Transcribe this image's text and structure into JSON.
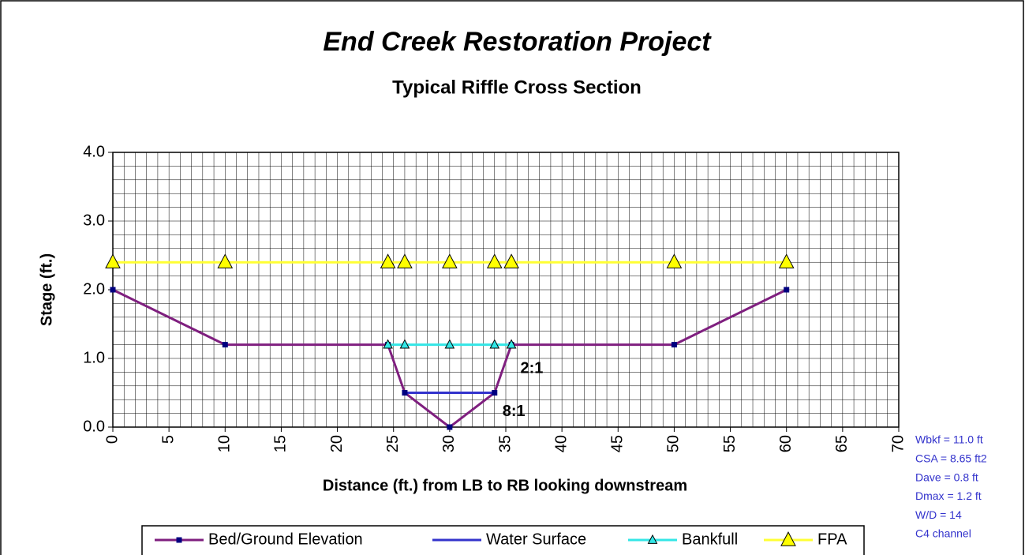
{
  "chart_data": {
    "type": "line",
    "title": "End Creek Restoration Project",
    "subtitle": "Typical Riffle Cross Section",
    "x_label": "Distance (ft.) from  LB to RB looking downstream",
    "y_label": "Stage (ft.)",
    "xlim": [
      0,
      70
    ],
    "ylim": [
      0,
      4
    ],
    "xticks": [
      0,
      5,
      10,
      15,
      20,
      25,
      30,
      35,
      40,
      45,
      50,
      55,
      60,
      65,
      70
    ],
    "yticks": [
      {
        "value": 0,
        "label": "0.0"
      },
      {
        "value": 1,
        "label": "1.0"
      },
      {
        "value": 2,
        "label": "2.0"
      },
      {
        "value": 3,
        "label": "3.0"
      },
      {
        "value": 4,
        "label": "4.0"
      }
    ],
    "grid": true,
    "minor_grid": {
      "x": 1,
      "y": 0.2
    },
    "legend": "bottom",
    "series": [
      {
        "name": "Bed/Ground Elevation",
        "color": "#7f1f7f",
        "marker": "square",
        "marker_color": "#000080",
        "marker_size": "small",
        "x": [
          0,
          10,
          24.5,
          26,
          30,
          34,
          35.5,
          50,
          60
        ],
        "values": [
          2.0,
          1.2,
          1.2,
          0.5,
          0,
          0.5,
          1.2,
          1.2,
          2.0
        ]
      },
      {
        "name": "Water Surface",
        "color": "#3333cc",
        "marker": "none",
        "x": [
          26,
          34
        ],
        "values": [
          0.5,
          0.5
        ]
      },
      {
        "name": "Bankfull",
        "color": "#33e6e6",
        "marker": "triangle",
        "marker_color": "#33e6e6",
        "marker_size": "small",
        "x": [
          24.5,
          26,
          30,
          34,
          35.5
        ],
        "values": [
          1.2,
          1.2,
          1.2,
          1.2,
          1.2
        ]
      },
      {
        "name": "FPA",
        "color": "#ffff33",
        "marker": "triangle",
        "marker_color": "#ffff00",
        "marker_size": "large",
        "x": [
          0,
          10,
          24.5,
          26,
          30,
          34,
          35.5,
          50,
          60
        ],
        "values": [
          2.4,
          2.4,
          2.4,
          2.4,
          2.4,
          2.4,
          2.4,
          2.4,
          2.4
        ]
      }
    ],
    "annotations": [
      {
        "text": "2:1",
        "x": 36.3,
        "y": 0.85
      },
      {
        "text": "8:1",
        "x": 34.7,
        "y": 0.22
      }
    ],
    "side_notes": [
      "Wbkf = 11.0 ft",
      "CSA = 8.65 ft2",
      "Dave = 0.8 ft",
      "Dmax = 1.2 ft",
      "W/D = 14",
      "C4 channel"
    ],
    "side_notes_color": "#3333cc"
  }
}
